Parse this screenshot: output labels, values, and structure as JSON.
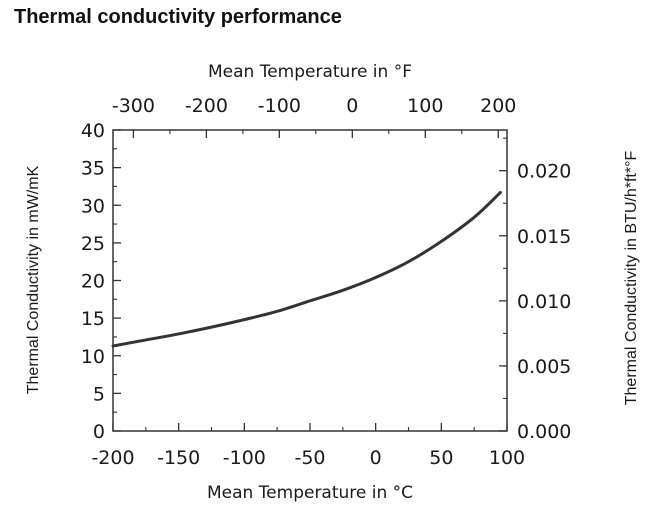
{
  "page": {
    "title": "Thermal conductivity performance"
  },
  "chart_data": {
    "type": "line",
    "title": "Thermal conductivity performance",
    "x_bottom": {
      "label": "Mean Temperature in °C",
      "range": [
        -200,
        100
      ],
      "ticks": [
        -200,
        -150,
        -100,
        -50,
        0,
        50,
        100
      ],
      "tick_labels": [
        "-200",
        "-150",
        "-100",
        "-50",
        "0",
        "50",
        "100"
      ]
    },
    "x_top": {
      "label": "Mean Temperature in °F",
      "ticks_f": [
        -300,
        -200,
        -100,
        0,
        100,
        200
      ],
      "tick_labels": [
        "-300",
        "-200",
        "-100",
        "0",
        "100",
        "200"
      ]
    },
    "y_left": {
      "label": "Thermal Conductivity in mW/mK",
      "range": [
        0,
        40
      ],
      "ticks": [
        0,
        5,
        10,
        15,
        20,
        25,
        30,
        35,
        40
      ],
      "tick_labels": [
        "0",
        "5",
        "10",
        "15",
        "20",
        "25",
        "30",
        "35",
        "40"
      ]
    },
    "y_right": {
      "label": "Thermal Conductivity in BTU/h*ft*°F",
      "ticks": [
        0.0,
        0.005,
        0.01,
        0.015,
        0.02
      ],
      "tick_labels": [
        "0.000",
        "0.005",
        "0.010",
        "0.015",
        "0.020"
      ]
    },
    "series": [
      {
        "name": "Thermal conductivity",
        "color": "#333333",
        "x": [
          -200,
          -175,
          -150,
          -125,
          -100,
          -75,
          -50,
          -25,
          0,
          25,
          50,
          75,
          95
        ],
        "y": [
          11.3,
          12.1,
          12.9,
          13.8,
          14.8,
          15.9,
          17.3,
          18.7,
          20.4,
          22.5,
          25.2,
          28.4,
          31.7
        ]
      }
    ],
    "grid": false
  }
}
